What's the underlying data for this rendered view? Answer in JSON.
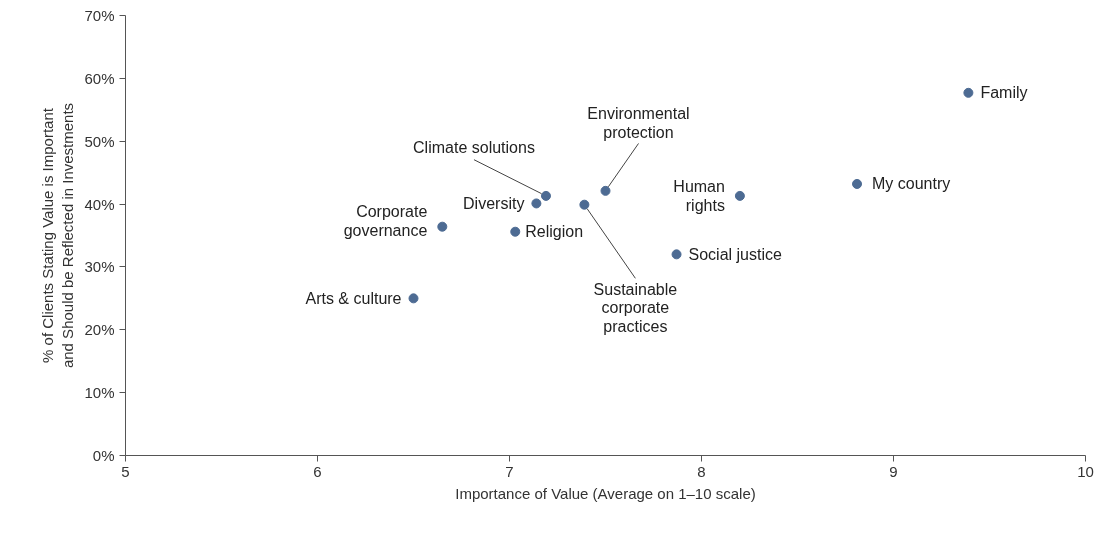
{
  "chart_data": {
    "type": "scatter",
    "xlabel": "Importance of Value (Average on 1–10 scale)",
    "ylabel": "% of Clients Stating Value is Important\nand Should be Reflected in Investments",
    "x": [
      9.39,
      8.81,
      8.2,
      7.87,
      7.5,
      7.39,
      7.19,
      7.14,
      7.03,
      6.65,
      6.5
    ],
    "series": [
      {
        "color": "#4d6b93",
        "values": [
          57.7,
          43.2,
          41.3,
          32.0,
          42.1,
          39.9,
          41.3,
          40.1,
          35.6,
          36.4,
          25.0
        ]
      }
    ],
    "annotations": [
      {
        "text": "Family",
        "x": 9.39,
        "y": 57.7
      },
      {
        "text": "My country",
        "x": 8.81,
        "y": 43.2
      },
      {
        "text": "Human\nrights",
        "x": 8.2,
        "y": 41.3
      },
      {
        "text": "Social justice",
        "x": 7.87,
        "y": 32.0
      },
      {
        "text": "Environmental\nprotection",
        "x": 7.5,
        "y": 42.1
      },
      {
        "text": "Sustainable\ncorporate\npractices",
        "x": 7.39,
        "y": 39.9
      },
      {
        "text": "Climate solutions",
        "x": 7.19,
        "y": 41.3
      },
      {
        "text": "Diversity",
        "x": 7.14,
        "y": 40.1
      },
      {
        "text": "Religion",
        "x": 7.03,
        "y": 35.6
      },
      {
        "text": "Corporate\ngovernance",
        "x": 6.65,
        "y": 36.4
      },
      {
        "text": "Arts & culture",
        "x": 6.5,
        "y": 25.0
      }
    ],
    "xlim": [
      5,
      10
    ],
    "xticks": [
      5,
      6,
      7,
      8,
      9,
      10
    ],
    "ylim": [
      0,
      70
    ],
    "yticks": [
      {
        "value": 0,
        "label": "0%"
      },
      {
        "value": 10,
        "label": "10%"
      },
      {
        "value": 20,
        "label": "20%"
      },
      {
        "value": 30,
        "label": "30%"
      },
      {
        "value": 40,
        "label": "40%"
      },
      {
        "value": 50,
        "label": "50%"
      },
      {
        "value": 60,
        "label": "60%"
      },
      {
        "value": 70,
        "label": "70%"
      }
    ],
    "grid": false,
    "marker": "circle"
  }
}
